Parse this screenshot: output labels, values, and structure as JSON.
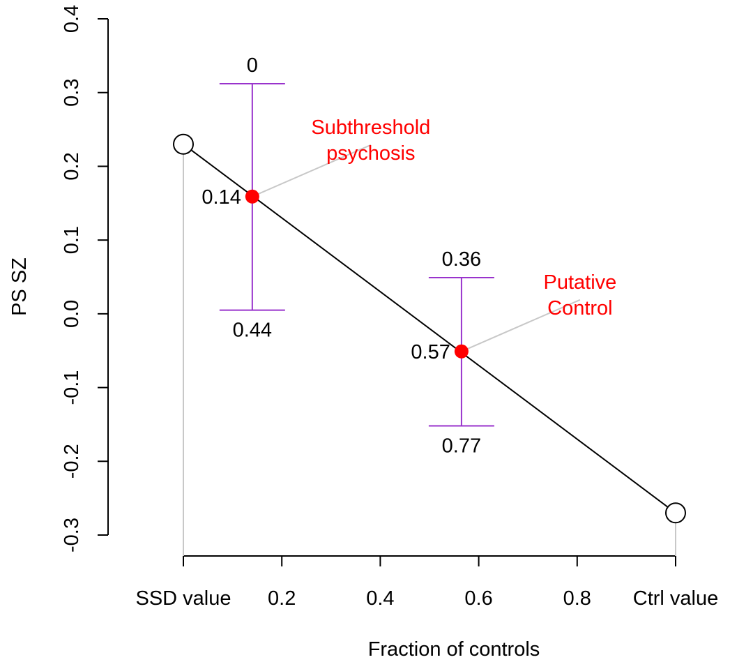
{
  "chart_data": {
    "type": "scatter",
    "title": "",
    "xlabel": "Fraction of controls",
    "ylabel": "PS SZ",
    "xlim": [
      0,
      1
    ],
    "ylim": [
      -0.3,
      0.4
    ],
    "x_ticks": [
      {
        "value": 0,
        "label": "SSD value"
      },
      {
        "value": 0.2,
        "label": "0.2"
      },
      {
        "value": 0.4,
        "label": "0.4"
      },
      {
        "value": 0.6,
        "label": "0.6"
      },
      {
        "value": 0.8,
        "label": "0.8"
      },
      {
        "value": 1,
        "label": "Ctrl value"
      }
    ],
    "y_ticks": [
      {
        "value": -0.3,
        "label": "-0.3"
      },
      {
        "value": -0.2,
        "label": "-0.2"
      },
      {
        "value": -0.1,
        "label": "-0.1"
      },
      {
        "value": 0.0,
        "label": "0.0"
      },
      {
        "value": 0.1,
        "label": "0.1"
      },
      {
        "value": 0.2,
        "label": "0.2"
      },
      {
        "value": 0.3,
        "label": "0.3"
      },
      {
        "value": 0.4,
        "label": "0.4"
      }
    ],
    "reference_line": {
      "x": [
        0,
        1
      ],
      "y": [
        0.23,
        -0.27
      ]
    },
    "endpoints": [
      {
        "x": 0,
        "y": 0.23
      },
      {
        "x": 1,
        "y": -0.27
      }
    ],
    "groups": [
      {
        "name": "Subthreshold psychosis",
        "x": 0.14,
        "y": 0.159,
        "x_label": "0.14",
        "ci_low": 0.005,
        "ci_high": 0.312,
        "ci_low_label": "0.44",
        "ci_high_label": "0"
      },
      {
        "name": "Putative Control",
        "x": 0.565,
        "y": -0.051,
        "x_label": "0.57",
        "ci_low": -0.152,
        "ci_high": 0.049,
        "ci_low_label": "0.77",
        "ci_high_label": "0.36"
      }
    ],
    "annotations": [
      {
        "lines": [
          "Subthreshold",
          "psychosis"
        ],
        "color": "#ff0000"
      },
      {
        "lines": [
          "Putative",
          "Control"
        ],
        "color": "#ff0000"
      }
    ],
    "colors": {
      "point": "#ff0000",
      "error_bar": "#9933cc",
      "line": "#000000",
      "leader": "#c8c8c8",
      "annotation": "#ff0000"
    },
    "grid": false,
    "legend": "none"
  }
}
